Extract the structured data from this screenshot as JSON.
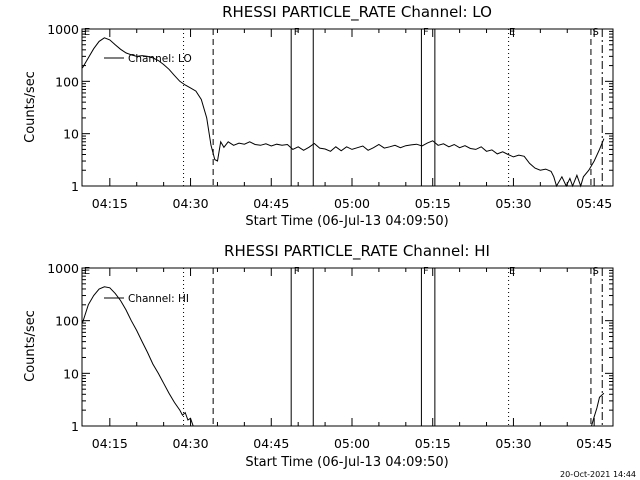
{
  "x_ticks": [
    "04:15",
    "04:30",
    "04:45",
    "05:00",
    "05:15",
    "05:30",
    "05:45"
  ],
  "y_ticks": [
    "1",
    "10",
    "100",
    "1000"
  ],
  "x_tick_minutes": [
    15,
    30,
    45,
    60,
    75,
    90,
    105
  ],
  "footer_stamp": "20-Oct-2021 14:44",
  "chart_data": [
    {
      "type": "line",
      "title": "RHESSI PARTICLE_RATE Channel: LO",
      "xlabel": "Start Time (06-Jul-13 04:09:50)",
      "ylabel": "Counts/sec",
      "yscale": "log",
      "ylim": [
        1,
        1000
      ],
      "xlim_minutes_after_0400": [
        9.83,
        108.5
      ],
      "legend": {
        "label": "Channel: LO",
        "placement": "top-left"
      },
      "flag_markers": [
        {
          "label": "E",
          "style": "solid",
          "minute": 10.0
        },
        {
          "label": "F",
          "style": "solid",
          "minute": 49.0
        },
        {
          "label": "F",
          "style": "solid",
          "minute": 73.0
        },
        {
          "label": "E",
          "style": "dotted",
          "minute": 89.0
        },
        {
          "label": "S",
          "style": "dashed",
          "minute": 104.5
        }
      ],
      "event_lines": [
        {
          "style": "dotted",
          "minute": 28.7
        },
        {
          "style": "dashed",
          "minute": 34.2
        },
        {
          "style": "solid",
          "minute": 48.7
        },
        {
          "style": "solid",
          "minute": 52.8
        },
        {
          "style": "solid",
          "minute": 72.9
        },
        {
          "style": "solid",
          "minute": 75.4
        },
        {
          "style": "dotted",
          "minute": 89.1
        },
        {
          "style": "dashed",
          "minute": 104.4
        },
        {
          "style": "dashdot",
          "minute": 106.5
        }
      ],
      "series": [
        {
          "name": "Channel: LO",
          "points": [
            [
              9.9,
              180
            ],
            [
              11,
              280
            ],
            [
              12,
              420
            ],
            [
              13,
              580
            ],
            [
              14,
              680
            ],
            [
              15,
              620
            ],
            [
              16,
              500
            ],
            [
              17,
              410
            ],
            [
              18,
              350
            ],
            [
              19,
              320
            ],
            [
              20,
              300
            ],
            [
              21,
              310
            ],
            [
              22,
              300
            ],
            [
              23,
              280
            ],
            [
              24,
              250
            ],
            [
              25,
              210
            ],
            [
              26,
              170
            ],
            [
              27,
              130
            ],
            [
              28,
              100
            ],
            [
              29,
              85
            ],
            [
              30,
              75
            ],
            [
              31,
              65
            ],
            [
              32,
              45
            ],
            [
              33,
              20
            ],
            [
              33.8,
              6
            ],
            [
              34.5,
              3.2
            ],
            [
              35.0,
              3.0
            ],
            [
              35.6,
              7
            ],
            [
              36.2,
              5.5
            ],
            [
              37,
              7.0
            ],
            [
              38,
              6.0
            ],
            [
              39,
              6.6
            ],
            [
              40,
              6.3
            ],
            [
              41,
              7.0
            ],
            [
              42,
              6.2
            ],
            [
              43,
              6.0
            ],
            [
              44,
              6.4
            ],
            [
              45,
              5.8
            ],
            [
              46,
              6.3
            ],
            [
              47,
              6.0
            ],
            [
              48,
              6.2
            ],
            [
              49,
              5.0
            ],
            [
              50,
              5.6
            ],
            [
              51,
              4.8
            ],
            [
              52,
              5.5
            ],
            [
              53,
              6.5
            ],
            [
              54,
              5.3
            ],
            [
              55,
              5.1
            ],
            [
              56,
              4.6
            ],
            [
              57,
              5.6
            ],
            [
              58,
              4.7
            ],
            [
              59,
              5.6
            ],
            [
              60,
              5.0
            ],
            [
              61,
              5.4
            ],
            [
              62,
              5.8
            ],
            [
              63,
              4.8
            ],
            [
              64,
              5.4
            ],
            [
              65,
              6.2
            ],
            [
              66,
              5.3
            ],
            [
              67,
              5.6
            ],
            [
              68,
              6.0
            ],
            [
              69,
              5.4
            ],
            [
              70,
              5.9
            ],
            [
              71,
              6.1
            ],
            [
              72,
              6.3
            ],
            [
              73,
              5.8
            ],
            [
              74,
              6.6
            ],
            [
              75,
              7.3
            ],
            [
              76,
              6.0
            ],
            [
              77,
              6.4
            ],
            [
              78,
              5.6
            ],
            [
              79,
              6.2
            ],
            [
              80,
              5.4
            ],
            [
              81,
              5.9
            ],
            [
              82,
              5.2
            ],
            [
              83,
              5.0
            ],
            [
              84,
              5.6
            ],
            [
              85,
              4.6
            ],
            [
              86,
              4.9
            ],
            [
              87,
              4.1
            ],
            [
              88,
              4.5
            ],
            [
              89,
              4.0
            ],
            [
              90,
              3.6
            ],
            [
              91,
              3.9
            ],
            [
              92,
              3.7
            ],
            [
              93,
              2.7
            ],
            [
              94,
              2.2
            ],
            [
              95,
              2.0
            ],
            [
              96,
              2.1
            ],
            [
              97,
              1.9
            ],
            [
              97.5,
              1.5
            ],
            [
              98,
              1.0
            ],
            [
              99,
              1.5
            ],
            [
              99.8,
              1.0
            ],
            [
              100.5,
              1.4
            ],
            [
              101,
              1.0
            ],
            [
              101.8,
              1.6
            ],
            [
              102.5,
              1.0
            ],
            [
              103,
              1.5
            ],
            [
              104,
              2.0
            ],
            [
              105,
              3.0
            ],
            [
              106,
              5.0
            ],
            [
              106.8,
              8.0
            ]
          ]
        }
      ]
    },
    {
      "type": "line",
      "title": "RHESSI PARTICLE_RATE Channel: HI",
      "xlabel": "Start Time (06-Jul-13 04:09:50)",
      "ylabel": "Counts/sec",
      "yscale": "log",
      "ylim": [
        1,
        1000
      ],
      "xlim_minutes_after_0400": [
        9.83,
        108.5
      ],
      "legend": {
        "label": "Channel: HI",
        "placement": "top-left"
      },
      "flag_markers": [
        {
          "label": "E",
          "style": "solid",
          "minute": 10.0
        },
        {
          "label": "F",
          "style": "solid",
          "minute": 49.0
        },
        {
          "label": "F",
          "style": "solid",
          "minute": 73.0
        },
        {
          "label": "E",
          "style": "dotted",
          "minute": 89.0
        },
        {
          "label": "S",
          "style": "dashed",
          "minute": 104.5
        }
      ],
      "event_lines": [
        {
          "style": "dotted",
          "minute": 28.7
        },
        {
          "style": "dashed",
          "minute": 34.2
        },
        {
          "style": "solid",
          "minute": 48.7
        },
        {
          "style": "solid",
          "minute": 52.8
        },
        {
          "style": "solid",
          "minute": 72.9
        },
        {
          "style": "solid",
          "minute": 75.4
        },
        {
          "style": "dotted",
          "minute": 89.1
        },
        {
          "style": "dashed",
          "minute": 104.4
        },
        {
          "style": "dashdot",
          "minute": 106.5
        }
      ],
      "series": [
        {
          "name": "Channel: HI",
          "points": [
            [
              9.9,
              90
            ],
            [
              11,
              200
            ],
            [
              12,
              300
            ],
            [
              13,
              400
            ],
            [
              14,
              440
            ],
            [
              15,
              420
            ],
            [
              16,
              330
            ],
            [
              17,
              240
            ],
            [
              18,
              160
            ],
            [
              19,
              100
            ],
            [
              20,
              65
            ],
            [
              21,
              40
            ],
            [
              22,
              25
            ],
            [
              23,
              15
            ],
            [
              24,
              10
            ],
            [
              25,
              6.5
            ],
            [
              26,
              4.2
            ],
            [
              27,
              2.8
            ],
            [
              28,
              2.0
            ],
            [
              28.5,
              1.6
            ],
            [
              29,
              1.8
            ],
            [
              29.5,
              1.3
            ],
            [
              30,
              1.4
            ],
            [
              30.5,
              1.0
            ]
          ]
        },
        {
          "name": "",
          "points": [
            [
              104.5,
              1.0
            ],
            [
              105,
              1.5
            ],
            [
              105.5,
              2.2
            ],
            [
              106,
              3.5
            ],
            [
              106.8,
              4.2
            ]
          ]
        }
      ]
    }
  ]
}
